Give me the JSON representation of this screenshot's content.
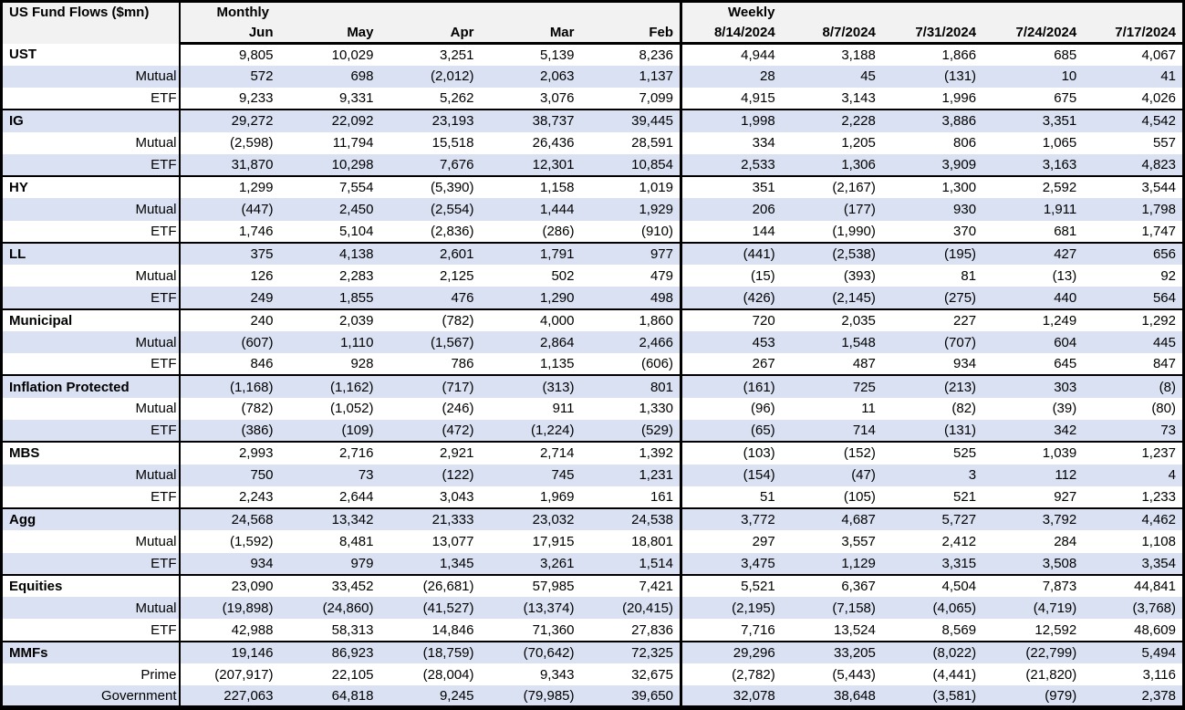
{
  "colors": {
    "band": "#d9e1f2",
    "header_bg": "#f2f2f2",
    "border": "#000000"
  },
  "chart_data": {
    "type": "table",
    "title": "US Fund Flows ($mn)",
    "column_groups": [
      {
        "label": "Monthly",
        "columns": [
          "Jun",
          "May",
          "Apr",
          "Mar",
          "Feb"
        ]
      },
      {
        "label": "Weekly",
        "columns": [
          "8/14/2024",
          "8/7/2024",
          "7/31/2024",
          "7/24/2024",
          "7/17/2024"
        ]
      }
    ],
    "rows": [
      {
        "label": "UST",
        "level": "group",
        "monthly": [
          9805,
          10029,
          3251,
          5139,
          8236
        ],
        "weekly": [
          4944,
          3188,
          1866,
          685,
          4067
        ]
      },
      {
        "label": "Mutual",
        "level": "sub",
        "monthly": [
          572,
          698,
          -2012,
          2063,
          1137
        ],
        "weekly": [
          28,
          45,
          -131,
          10,
          41
        ]
      },
      {
        "label": "ETF",
        "level": "sub",
        "monthly": [
          9233,
          9331,
          5262,
          3076,
          7099
        ],
        "weekly": [
          4915,
          3143,
          1996,
          675,
          4026
        ]
      },
      {
        "label": "IG",
        "level": "group",
        "monthly": [
          29272,
          22092,
          23193,
          38737,
          39445
        ],
        "weekly": [
          1998,
          2228,
          3886,
          3351,
          4542
        ]
      },
      {
        "label": "Mutual",
        "level": "sub",
        "monthly": [
          -2598,
          11794,
          15518,
          26436,
          28591
        ],
        "weekly": [
          334,
          1205,
          806,
          1065,
          557
        ]
      },
      {
        "label": "ETF",
        "level": "sub",
        "monthly": [
          31870,
          10298,
          7676,
          12301,
          10854
        ],
        "weekly": [
          2533,
          1306,
          3909,
          3163,
          4823
        ]
      },
      {
        "label": "HY",
        "level": "group",
        "monthly": [
          1299,
          7554,
          -5390,
          1158,
          1019
        ],
        "weekly": [
          351,
          -2167,
          1300,
          2592,
          3544
        ]
      },
      {
        "label": "Mutual",
        "level": "sub",
        "monthly": [
          -447,
          2450,
          -2554,
          1444,
          1929
        ],
        "weekly": [
          206,
          -177,
          930,
          1911,
          1798
        ]
      },
      {
        "label": "ETF",
        "level": "sub",
        "monthly": [
          1746,
          5104,
          -2836,
          -286,
          -910
        ],
        "weekly": [
          144,
          -1990,
          370,
          681,
          1747
        ]
      },
      {
        "label": "LL",
        "level": "group",
        "monthly": [
          375,
          4138,
          2601,
          1791,
          977
        ],
        "weekly": [
          -441,
          -2538,
          -195,
          427,
          656
        ]
      },
      {
        "label": "Mutual",
        "level": "sub",
        "monthly": [
          126,
          2283,
          2125,
          502,
          479
        ],
        "weekly": [
          -15,
          -393,
          81,
          -13,
          92
        ]
      },
      {
        "label": "ETF",
        "level": "sub",
        "monthly": [
          249,
          1855,
          476,
          1290,
          498
        ],
        "weekly": [
          -426,
          -2145,
          -275,
          440,
          564
        ]
      },
      {
        "label": "Municipal",
        "level": "group",
        "monthly": [
          240,
          2039,
          -782,
          4000,
          1860
        ],
        "weekly": [
          720,
          2035,
          227,
          1249,
          1292
        ]
      },
      {
        "label": "Mutual",
        "level": "sub",
        "monthly": [
          -607,
          1110,
          -1567,
          2864,
          2466
        ],
        "weekly": [
          453,
          1548,
          -707,
          604,
          445
        ]
      },
      {
        "label": "ETF",
        "level": "sub",
        "monthly": [
          846,
          928,
          786,
          1135,
          -606
        ],
        "weekly": [
          267,
          487,
          934,
          645,
          847
        ]
      },
      {
        "label": "Inflation Protected",
        "level": "group",
        "monthly": [
          -1168,
          -1162,
          -717,
          -313,
          801
        ],
        "weekly": [
          -161,
          725,
          -213,
          303,
          -8
        ]
      },
      {
        "label": "Mutual",
        "level": "sub",
        "monthly": [
          -782,
          -1052,
          -246,
          911,
          1330
        ],
        "weekly": [
          -96,
          11,
          -82,
          -39,
          -80
        ]
      },
      {
        "label": "ETF",
        "level": "sub",
        "monthly": [
          -386,
          -109,
          -472,
          -1224,
          -529
        ],
        "weekly": [
          -65,
          714,
          -131,
          342,
          73
        ]
      },
      {
        "label": "MBS",
        "level": "group",
        "monthly": [
          2993,
          2716,
          2921,
          2714,
          1392
        ],
        "weekly": [
          -103,
          -152,
          525,
          1039,
          1237
        ]
      },
      {
        "label": "Mutual",
        "level": "sub",
        "monthly": [
          750,
          73,
          -122,
          745,
          1231
        ],
        "weekly": [
          -154,
          -47,
          3,
          112,
          4
        ]
      },
      {
        "label": "ETF",
        "level": "sub",
        "monthly": [
          2243,
          2644,
          3043,
          1969,
          161
        ],
        "weekly": [
          51,
          -105,
          521,
          927,
          1233
        ]
      },
      {
        "label": "Agg",
        "level": "group",
        "monthly": [
          24568,
          13342,
          21333,
          23032,
          24538
        ],
        "weekly": [
          3772,
          4687,
          5727,
          3792,
          4462
        ]
      },
      {
        "label": "Mutual",
        "level": "sub",
        "monthly": [
          -1592,
          8481,
          13077,
          17915,
          18801
        ],
        "weekly": [
          297,
          3557,
          2412,
          284,
          1108
        ]
      },
      {
        "label": "ETF",
        "level": "sub",
        "monthly": [
          934,
          979,
          1345,
          3261,
          1514
        ],
        "weekly": [
          3475,
          1129,
          3315,
          3508,
          3354
        ]
      },
      {
        "label": "Equities",
        "level": "group",
        "monthly": [
          23090,
          33452,
          -26681,
          57985,
          7421
        ],
        "weekly": [
          5521,
          6367,
          4504,
          7873,
          44841
        ]
      },
      {
        "label": "Mutual",
        "level": "sub",
        "monthly": [
          -19898,
          -24860,
          -41527,
          -13374,
          -20415
        ],
        "weekly": [
          -2195,
          -7158,
          -4065,
          -4719,
          -3768
        ]
      },
      {
        "label": "ETF",
        "level": "sub",
        "monthly": [
          42988,
          58313,
          14846,
          71360,
          27836
        ],
        "weekly": [
          7716,
          13524,
          8569,
          12592,
          48609
        ]
      },
      {
        "label": "MMFs",
        "level": "group",
        "monthly": [
          19146,
          86923,
          -18759,
          -70642,
          72325
        ],
        "weekly": [
          29296,
          33205,
          -8022,
          -22799,
          5494
        ]
      },
      {
        "label": "Prime",
        "level": "sub",
        "monthly": [
          -207917,
          22105,
          -28004,
          9343,
          32675
        ],
        "weekly": [
          -2782,
          -5443,
          -4441,
          -21820,
          3116
        ]
      },
      {
        "label": "Government",
        "level": "sub",
        "monthly": [
          227063,
          64818,
          9245,
          -79985,
          39650
        ],
        "weekly": [
          32078,
          38648,
          -3581,
          -979,
          2378
        ]
      }
    ]
  }
}
